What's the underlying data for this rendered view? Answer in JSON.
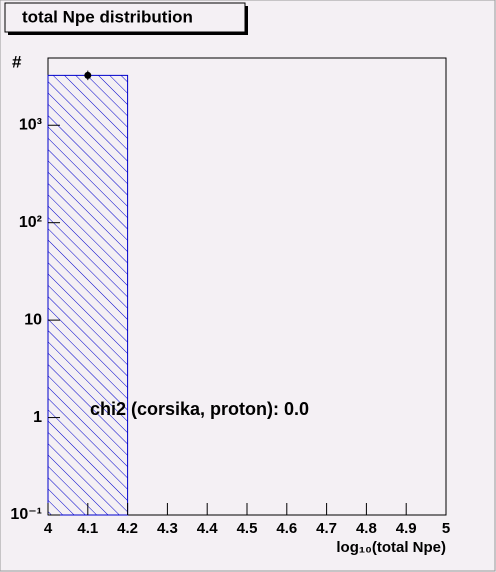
{
  "chart_data": {
    "type": "histogram",
    "title": "total Npe distribution",
    "xlabel": "log₁₀(total Npe)",
    "ylabel": "#",
    "bins": [
      4.0,
      4.2
    ],
    "values": [
      3250
    ],
    "color": "#0000cc",
    "points": {
      "x": [
        4.1
      ],
      "values": [
        3250
      ],
      "errors": [
        57
      ],
      "color": "#000000"
    },
    "annotation": "chi2 (corsika, proton): 0.0",
    "log_y": true,
    "xlim": [
      4,
      5
    ],
    "xticks": [
      4,
      4.1,
      4.2,
      4.3,
      4.4,
      4.5,
      4.6,
      4.7,
      4.8,
      4.9,
      5
    ],
    "ylim": [
      0.1,
      4900
    ],
    "yticks": [
      {
        "value": 0.1,
        "label": "10⁻¹"
      },
      1,
      10,
      {
        "value": 100,
        "label": "10²"
      },
      {
        "value": 1000,
        "label": "10³"
      }
    ]
  }
}
